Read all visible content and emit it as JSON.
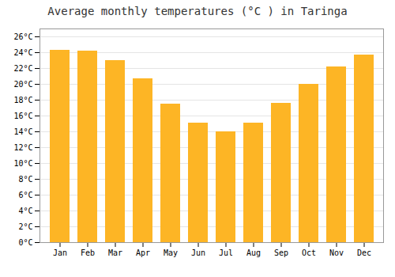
{
  "chart_data": {
    "type": "bar",
    "title": "Average monthly temperatures (°C ) in Taringa",
    "categories": [
      "Jan",
      "Feb",
      "Mar",
      "Apr",
      "May",
      "Jun",
      "Jul",
      "Aug",
      "Sep",
      "Oct",
      "Nov",
      "Dec"
    ],
    "values": [
      24.3,
      24.2,
      23.0,
      20.7,
      17.5,
      15.1,
      14.0,
      15.1,
      17.6,
      20.0,
      22.2,
      23.7
    ],
    "color": "#FDB525",
    "ylim": [
      0,
      27
    ],
    "yticks": [
      {
        "value": 0,
        "label": "0°C"
      },
      {
        "value": 2,
        "label": "2°C"
      },
      {
        "value": 4,
        "label": "4°C"
      },
      {
        "value": 6,
        "label": "6°C"
      },
      {
        "value": 8,
        "label": "8°C"
      },
      {
        "value": 10,
        "label": "10°C"
      },
      {
        "value": 12,
        "label": "12°C"
      },
      {
        "value": 14,
        "label": "14°C"
      },
      {
        "value": 16,
        "label": "16°C"
      },
      {
        "value": 18,
        "label": "18°C"
      },
      {
        "value": 20,
        "label": "20°C"
      },
      {
        "value": 22,
        "label": "22°C"
      },
      {
        "value": 24,
        "label": "24°C"
      },
      {
        "value": 26,
        "label": "26°C"
      }
    ],
    "grid": true
  }
}
